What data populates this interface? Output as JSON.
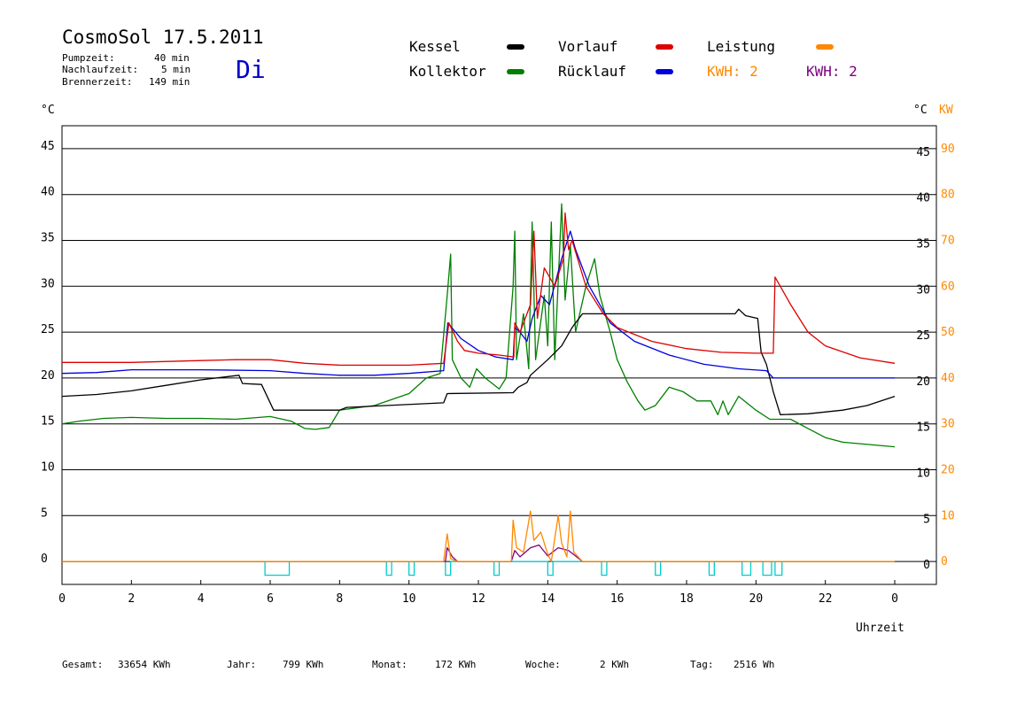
{
  "header": {
    "title": "CosmoSol 17.5.2011",
    "day": "Di",
    "info": [
      {
        "label": "Pumpzeit:",
        "value": "40 min"
      },
      {
        "label": "Nachlaufzeit:",
        "value": "5 min"
      },
      {
        "label": "Brennerzeit:",
        "value": "149 min"
      }
    ]
  },
  "legend": {
    "kessel": "Kessel",
    "kollektor": "Kollektor",
    "vorlauf": "Vorlauf",
    "ruecklauf": "Rücklauf",
    "leistung": "Leistung",
    "kwh1": "KWH: 2",
    "kwh2": "KWH: 2"
  },
  "axes": {
    "left_unit": "°C",
    "right_unit": "°C",
    "right_unit2": "KW",
    "xlabel": "Uhrzeit"
  },
  "footer": [
    {
      "label": "Gesamt:",
      "value": "33654 KWh"
    },
    {
      "label": "Jahr:",
      "value": "799 KWh"
    },
    {
      "label": "Monat:",
      "value": "172 KWh"
    },
    {
      "label": "Woche:",
      "value": "2 KWh"
    },
    {
      "label": "Tag:",
      "value": "2516 Wh"
    }
  ],
  "colors": {
    "kessel": "#000000",
    "kollektor": "#008000",
    "vorlauf": "#dd0000",
    "ruecklauf": "#0000dd",
    "leistung": "#ff8800",
    "kwh2": "#800080",
    "pump": "#00cccc",
    "grid": "#000000"
  },
  "chart_data": {
    "type": "line",
    "xlabel": "Uhrzeit",
    "ylabel": "°C",
    "y2label": "KW",
    "xlim": [
      0,
      24
    ],
    "ylim": [
      -2.5,
      47.5
    ],
    "y2lim": [
      -5,
      95
    ],
    "x_ticks": [
      "0",
      "2",
      "4",
      "6",
      "8",
      "10",
      "12",
      "14",
      "16",
      "18",
      "20",
      "22",
      "0"
    ],
    "y_ticks": [
      0,
      5,
      10,
      15,
      20,
      25,
      30,
      35,
      40,
      45
    ],
    "y_ticks_right": [
      0,
      5,
      10,
      15,
      20,
      25,
      30,
      35,
      40,
      45
    ],
    "y2_ticks": [
      0,
      10,
      20,
      30,
      40,
      50,
      60,
      70,
      80,
      90
    ],
    "grid": "horizontal",
    "series": [
      {
        "name": "Kessel",
        "key": "kessel",
        "points": [
          [
            0,
            18
          ],
          [
            1,
            18.2
          ],
          [
            2,
            18.6
          ],
          [
            3,
            19.2
          ],
          [
            4,
            19.8
          ],
          [
            5.1,
            20.3
          ],
          [
            5.2,
            19.4
          ],
          [
            5.75,
            19.3
          ],
          [
            6.1,
            16.5
          ],
          [
            8,
            16.5
          ],
          [
            8.2,
            16.8
          ],
          [
            11,
            17.3
          ],
          [
            11.1,
            18.3
          ],
          [
            13,
            18.4
          ],
          [
            13.15,
            19
          ],
          [
            13.4,
            19.5
          ],
          [
            13.5,
            20.3
          ],
          [
            14,
            22
          ],
          [
            14.4,
            23.5
          ],
          [
            14.7,
            25.5
          ],
          [
            15,
            27
          ],
          [
            18.5,
            27
          ],
          [
            19.4,
            27
          ],
          [
            19.5,
            27.5
          ],
          [
            19.7,
            26.8
          ],
          [
            20.05,
            26.5
          ],
          [
            20.15,
            22.8
          ],
          [
            20.3,
            21.5
          ],
          [
            20.5,
            18.5
          ],
          [
            20.7,
            16
          ],
          [
            21.5,
            16.1
          ],
          [
            22.5,
            16.5
          ],
          [
            23.2,
            17
          ],
          [
            24,
            18
          ]
        ]
      },
      {
        "name": "Kollektor",
        "key": "kollektor",
        "points": [
          [
            0,
            15
          ],
          [
            0.5,
            15.3
          ],
          [
            1.2,
            15.6
          ],
          [
            2,
            15.7
          ],
          [
            3,
            15.6
          ],
          [
            4,
            15.6
          ],
          [
            5,
            15.5
          ],
          [
            6,
            15.8
          ],
          [
            6.6,
            15.3
          ],
          [
            7,
            14.5
          ],
          [
            7.3,
            14.4
          ],
          [
            7.7,
            14.6
          ],
          [
            8,
            16.5
          ],
          [
            9,
            17
          ],
          [
            10,
            18.3
          ],
          [
            10.5,
            20
          ],
          [
            10.9,
            20.5
          ],
          [
            11.1,
            29
          ],
          [
            11.2,
            33.5
          ],
          [
            11.25,
            22
          ],
          [
            11.5,
            20
          ],
          [
            11.75,
            19
          ],
          [
            11.95,
            21
          ],
          [
            12.2,
            20
          ],
          [
            12.6,
            18.8
          ],
          [
            12.8,
            20
          ],
          [
            13,
            30
          ],
          [
            13.05,
            36
          ],
          [
            13.1,
            22
          ],
          [
            13.3,
            27
          ],
          [
            13.45,
            21
          ],
          [
            13.55,
            37
          ],
          [
            13.65,
            22
          ],
          [
            13.9,
            29
          ],
          [
            14,
            23.5
          ],
          [
            14.1,
            37
          ],
          [
            14.2,
            22
          ],
          [
            14.4,
            39
          ],
          [
            14.5,
            28.5
          ],
          [
            14.65,
            34.5
          ],
          [
            14.8,
            25
          ],
          [
            15.1,
            30
          ],
          [
            15.35,
            33
          ],
          [
            15.5,
            29
          ],
          [
            15.8,
            25
          ],
          [
            16,
            22
          ],
          [
            16.3,
            19.5
          ],
          [
            16.6,
            17.5
          ],
          [
            16.8,
            16.5
          ],
          [
            17.1,
            17
          ],
          [
            17.5,
            19
          ],
          [
            17.9,
            18.5
          ],
          [
            18.3,
            17.5
          ],
          [
            18.7,
            17.5
          ],
          [
            18.9,
            16
          ],
          [
            19.05,
            17.5
          ],
          [
            19.2,
            16
          ],
          [
            19.5,
            18
          ],
          [
            20,
            16.5
          ],
          [
            20.4,
            15.5
          ],
          [
            21,
            15.5
          ],
          [
            21.5,
            14.5
          ],
          [
            22,
            13.5
          ],
          [
            22.5,
            13
          ],
          [
            24,
            12.5
          ]
        ]
      },
      {
        "name": "Vorlauf",
        "key": "vorlauf",
        "points": [
          [
            0,
            21.7
          ],
          [
            2,
            21.7
          ],
          [
            4,
            21.9
          ],
          [
            5,
            22
          ],
          [
            6,
            22
          ],
          [
            7,
            21.6
          ],
          [
            8,
            21.4
          ],
          [
            9,
            21.4
          ],
          [
            10,
            21.4
          ],
          [
            11,
            21.6
          ],
          [
            11.15,
            26
          ],
          [
            11.4,
            24
          ],
          [
            11.6,
            23
          ],
          [
            12,
            22.7
          ],
          [
            12.6,
            22.5
          ],
          [
            13.02,
            22.3
          ],
          [
            13.05,
            26
          ],
          [
            13.2,
            25
          ],
          [
            13.5,
            28
          ],
          [
            13.6,
            36
          ],
          [
            13.7,
            26.5
          ],
          [
            13.9,
            32
          ],
          [
            14.2,
            30
          ],
          [
            14.45,
            33
          ],
          [
            14.5,
            38
          ],
          [
            14.6,
            34
          ],
          [
            14.7,
            35
          ],
          [
            15.1,
            30
          ],
          [
            15.6,
            27
          ],
          [
            16,
            25.5
          ],
          [
            17,
            24
          ],
          [
            18,
            23.2
          ],
          [
            19,
            22.8
          ],
          [
            20,
            22.7
          ],
          [
            20.5,
            22.7
          ],
          [
            20.55,
            31
          ],
          [
            21,
            28
          ],
          [
            21.5,
            25
          ],
          [
            22,
            23.5
          ],
          [
            23,
            22.2
          ],
          [
            24,
            21.6
          ]
        ]
      },
      {
        "name": "Rücklauf",
        "key": "ruecklauf",
        "points": [
          [
            0,
            20.5
          ],
          [
            1,
            20.6
          ],
          [
            2,
            20.9
          ],
          [
            3,
            20.9
          ],
          [
            4,
            20.9
          ],
          [
            6,
            20.8
          ],
          [
            7,
            20.5
          ],
          [
            8,
            20.3
          ],
          [
            9,
            20.3
          ],
          [
            10,
            20.5
          ],
          [
            11,
            20.8
          ],
          [
            11.12,
            26
          ],
          [
            11.5,
            24.3
          ],
          [
            12,
            23
          ],
          [
            12.5,
            22.3
          ],
          [
            13,
            22
          ],
          [
            13.05,
            25.5
          ],
          [
            13.2,
            25
          ],
          [
            13.4,
            24
          ],
          [
            13.55,
            26.5
          ],
          [
            13.8,
            29
          ],
          [
            14.05,
            28
          ],
          [
            14.4,
            33
          ],
          [
            14.65,
            36
          ],
          [
            14.8,
            34
          ],
          [
            15.2,
            30
          ],
          [
            15.8,
            26
          ],
          [
            16.5,
            24
          ],
          [
            17.5,
            22.5
          ],
          [
            18.5,
            21.5
          ],
          [
            19.5,
            21
          ],
          [
            20.3,
            20.8
          ],
          [
            20.5,
            20
          ],
          [
            21.5,
            20
          ],
          [
            24,
            20
          ]
        ]
      },
      {
        "name": "Leistung",
        "key": "leistung",
        "points": [
          [
            0,
            0
          ],
          [
            11,
            0
          ],
          [
            11.1,
            3
          ],
          [
            11.2,
            0.3
          ],
          [
            11.4,
            0
          ],
          [
            12.95,
            0
          ],
          [
            13,
            4.5
          ],
          [
            13.1,
            1.5
          ],
          [
            13.3,
            1
          ],
          [
            13.5,
            5.5
          ],
          [
            13.6,
            2.3
          ],
          [
            13.8,
            3.2
          ],
          [
            14,
            0.8
          ],
          [
            14.1,
            0
          ],
          [
            14.3,
            5
          ],
          [
            14.4,
            2
          ],
          [
            14.55,
            0.5
          ],
          [
            14.65,
            5.5
          ],
          [
            14.75,
            1
          ],
          [
            15,
            0
          ],
          [
            24,
            0
          ]
        ]
      },
      {
        "name": "KWH: 2",
        "key": "kwh2",
        "points": [
          [
            0,
            0
          ],
          [
            11.05,
            0
          ],
          [
            11.1,
            1.5
          ],
          [
            11.25,
            0.5
          ],
          [
            11.4,
            0
          ],
          [
            12.95,
            0
          ],
          [
            13.05,
            1.2
          ],
          [
            13.2,
            0.5
          ],
          [
            13.5,
            1.5
          ],
          [
            13.75,
            1.8
          ],
          [
            14,
            0.6
          ],
          [
            14.3,
            1.5
          ],
          [
            14.6,
            1.2
          ],
          [
            14.8,
            0.6
          ],
          [
            15,
            0
          ],
          [
            24,
            0
          ]
        ]
      }
    ],
    "pump_intervals": [
      [
        5.85,
        6.55
      ],
      [
        9.35,
        9.5
      ],
      [
        10,
        10.15
      ],
      [
        11.05,
        11.2
      ],
      [
        12.45,
        12.6
      ],
      [
        14,
        14.15
      ],
      [
        15.55,
        15.7
      ],
      [
        17.1,
        17.25
      ],
      [
        18.65,
        18.8
      ],
      [
        19.6,
        19.85
      ],
      [
        20.2,
        20.45
      ],
      [
        20.55,
        20.75
      ]
    ]
  }
}
